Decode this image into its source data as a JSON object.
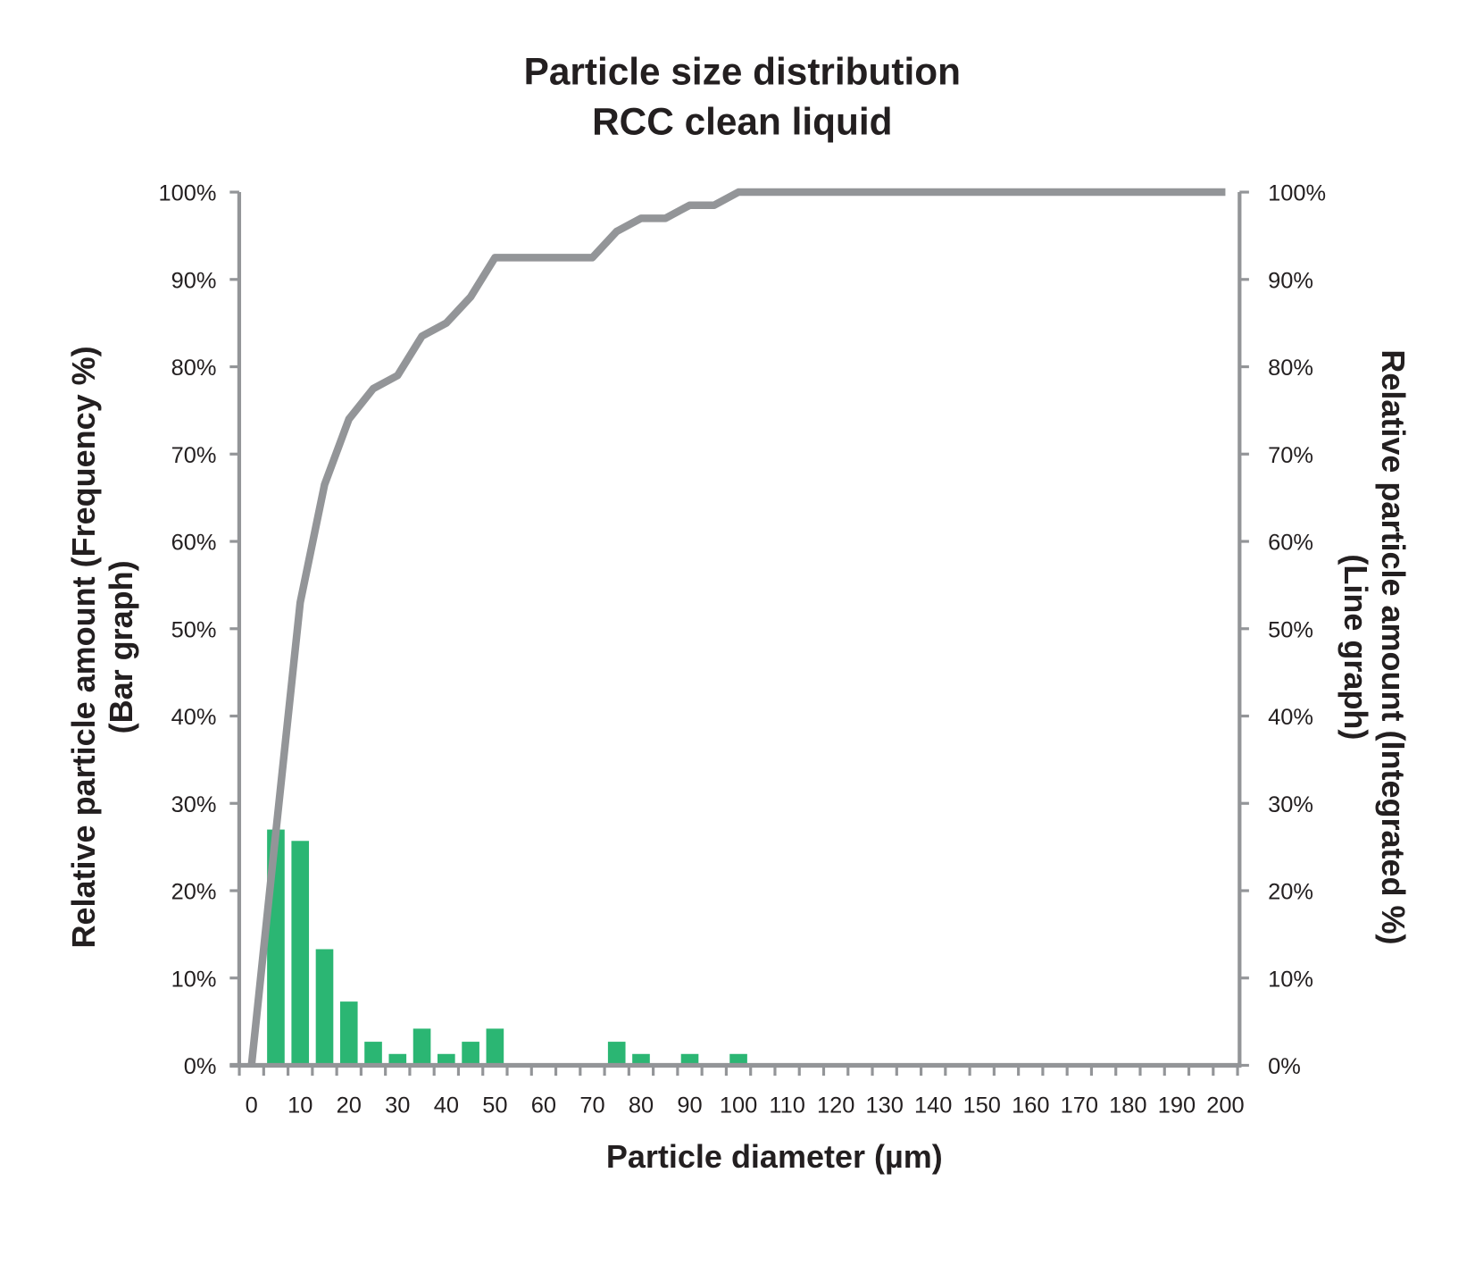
{
  "chart_data": {
    "type": "bar+line",
    "title": [
      "Particle size distribution",
      "RCC clean liquid"
    ],
    "xlabel": "Particle diameter (µm)",
    "ylabel_left": [
      "Relative particle amount (Frequency %)",
      "(Bar graph)"
    ],
    "ylabel_right": [
      "Relative particle amount (Integrated %)",
      "(Line graph)"
    ],
    "xlim": [
      0,
      200
    ],
    "ylim": [
      0,
      100
    ],
    "x_ticks": [
      "0",
      "10",
      "20",
      "30",
      "40",
      "50",
      "60",
      "70",
      "80",
      "90",
      "100",
      "110",
      "120",
      "130",
      "140",
      "150",
      "160",
      "170",
      "180",
      "190",
      "200"
    ],
    "y_ticks_left": [
      "0%",
      "10%",
      "20%",
      "30%",
      "40%",
      "50%",
      "60%",
      "70%",
      "80%",
      "90%",
      "100%"
    ],
    "y_ticks_right": [
      "0%",
      "10%",
      "20%",
      "30%",
      "40%",
      "50%",
      "60%",
      "70%",
      "80%",
      "90%",
      "100%"
    ],
    "grid": false,
    "colors": {
      "bars": "#2bb673",
      "line": "#939598",
      "axes": "#939598"
    },
    "bars": {
      "x": [
        5,
        10,
        15,
        20,
        25,
        30,
        35,
        40,
        45,
        50,
        75,
        80,
        90,
        100
      ],
      "values": [
        27.0,
        25.7,
        13.3,
        7.3,
        2.7,
        1.3,
        4.2,
        1.3,
        2.7,
        4.2,
        2.7,
        1.3,
        1.3,
        1.3
      ]
    },
    "line": {
      "x": [
        0,
        5,
        10,
        15,
        20,
        25,
        30,
        35,
        40,
        45,
        50,
        55,
        60,
        65,
        70,
        75,
        80,
        85,
        90,
        95,
        100,
        200
      ],
      "values": [
        0,
        26.7,
        53,
        66.5,
        74,
        77.5,
        79,
        83.5,
        85,
        88,
        92.5,
        92.5,
        92.5,
        92.5,
        92.5,
        95.5,
        97,
        97,
        98.5,
        98.5,
        100,
        100
      ]
    }
  }
}
